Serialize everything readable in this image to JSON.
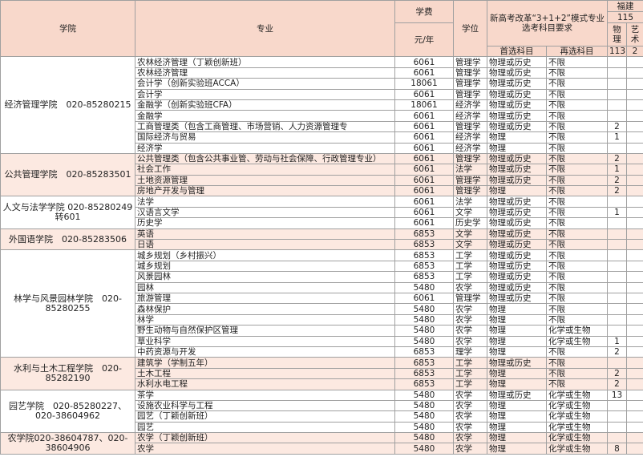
{
  "header": {
    "college": "学院",
    "major": "专业",
    "fee": "学费",
    "fee_unit": "元/年",
    "degree": "学位",
    "reform": "新高考改革“3+1+2”模式专业选考科目要求",
    "first": "首选科目",
    "second": "再选科目",
    "province": "福建",
    "province_total": 115,
    "physics": "物理",
    "arts": "艺术",
    "physics_total": 113,
    "arts_total": 2
  },
  "colleges": [
    {
      "name": "经济管理学院　020-85280215",
      "rows": [
        [
          "农林经济管理（丁颖创新班）",
          6061,
          "管理学",
          "物理或历史",
          "不限",
          null
        ],
        [
          "农林经济管理",
          6061,
          "管理学",
          "物理或历史",
          "不限",
          null
        ],
        [
          "会计学（创新实验班ACCA）",
          18061,
          "管理学",
          "物理或历史",
          "不限",
          null
        ],
        [
          "会计学",
          6061,
          "管理学",
          "物理或历史",
          "不限",
          null
        ],
        [
          "金融学（创新实验班CFA）",
          18061,
          "经济学",
          "物理或历史",
          "不限",
          null
        ],
        [
          "金融学",
          6061,
          "经济学",
          "物理或历史",
          "不限",
          null
        ],
        [
          "工商管理类（包含工商管理、市场营销、人力资源管理专",
          6061,
          "管理学",
          "物理或历史",
          "不限",
          2
        ],
        [
          "国际经济与贸易",
          6061,
          "经济学",
          "物理",
          "不限",
          1
        ],
        [
          "经济学",
          6061,
          "经济学",
          "物理",
          "不限",
          null
        ]
      ]
    },
    {
      "name": "公共管理学院　020-85283501",
      "rows": [
        [
          "公共管理类（包含公共事业管、劳动与社会保障、行政管理专业）",
          6061,
          "管理学",
          "物理或历史",
          "不限",
          2
        ],
        [
          "社会工作",
          6061,
          "法学",
          "物理或历史",
          "不限",
          1
        ],
        [
          "土地资源管理",
          6061,
          "管理学",
          "物理或历史",
          "不限",
          2
        ],
        [
          "房地产开发与管理",
          6061,
          "管理学",
          "物理",
          "不限",
          2
        ]
      ]
    },
    {
      "name": "人文与法学学院 020-85280249转601",
      "rows": [
        [
          "法学",
          6061,
          "法学",
          "物理或历史",
          "不限",
          null
        ],
        [
          "汉语言文学",
          6061,
          "文学",
          "物理或历史",
          "不限",
          1
        ],
        [
          "历史学",
          6061,
          "历史学",
          "物理或历史",
          "不限",
          null
        ]
      ]
    },
    {
      "name": "外国语学院　020-85283506",
      "rows": [
        [
          "英语",
          6853,
          "文学",
          "物理或历史",
          "不限",
          null
        ],
        [
          "日语",
          6853,
          "文学",
          "物理或历史",
          "不限",
          null
        ]
      ]
    },
    {
      "name": "林学与风景园林学院　020-85280255",
      "rows": [
        [
          "城乡规划（乡村振兴）",
          6853,
          "工学",
          "物理或历史",
          "不限",
          null
        ],
        [
          "城乡规划",
          6853,
          "工学",
          "物理或历史",
          "不限",
          null
        ],
        [
          "风景园林",
          6853,
          "工学",
          "物理或历史",
          "不限",
          null
        ],
        [
          "园林",
          5480,
          "农学",
          "物理或历史",
          "不限",
          null
        ],
        [
          "旅游管理",
          6061,
          "管理学",
          "物理或历史",
          "不限",
          null
        ],
        [
          "森林保护",
          5480,
          "农学",
          "物理",
          "不限",
          null
        ],
        [
          "林学",
          5480,
          "农学",
          "物理",
          "不限",
          null
        ],
        [
          "野生动物与自然保护区管理",
          5480,
          "农学",
          "物理",
          "化学或生物",
          null
        ],
        [
          "草业科学",
          5480,
          "农学",
          "物理",
          "化学或生物",
          1
        ],
        [
          "中药资源与开发",
          6853,
          "理学",
          "物理",
          "不限",
          2
        ]
      ]
    },
    {
      "name": "水利与土木工程学院　020-85282190",
      "rows": [
        [
          "建筑学（学制五年）",
          6853,
          "工学",
          "物理或历史",
          "不限",
          null
        ],
        [
          "土木工程",
          6853,
          "工学",
          "物理",
          "不限",
          2
        ],
        [
          "水利水电工程",
          6853,
          "工学",
          "物理",
          "不限",
          2
        ]
      ]
    },
    {
      "name": "园艺学院　020-85280227、020-38604962",
      "rows": [
        [
          "茶学",
          5480,
          "农学",
          "物理或历史",
          "化学或生物",
          13
        ],
        [
          "设施农业科学与工程",
          5480,
          "农学",
          "物理",
          "化学或生物",
          null
        ],
        [
          "园艺（丁颖创新班）",
          5480,
          "农学",
          "物理",
          "化学或生物",
          null
        ],
        [
          "园艺",
          5480,
          "农学",
          "物理",
          "化学或生物",
          null
        ]
      ]
    },
    {
      "name": "农学院020-38604787、020-38604906",
      "rows": [
        [
          "农学（丁颖创新班）",
          5480,
          "农学",
          "物理",
          "化学或生物",
          null
        ],
        [
          "农学",
          5480,
          "农学",
          "物理",
          "化学或生物",
          8
        ]
      ]
    }
  ]
}
